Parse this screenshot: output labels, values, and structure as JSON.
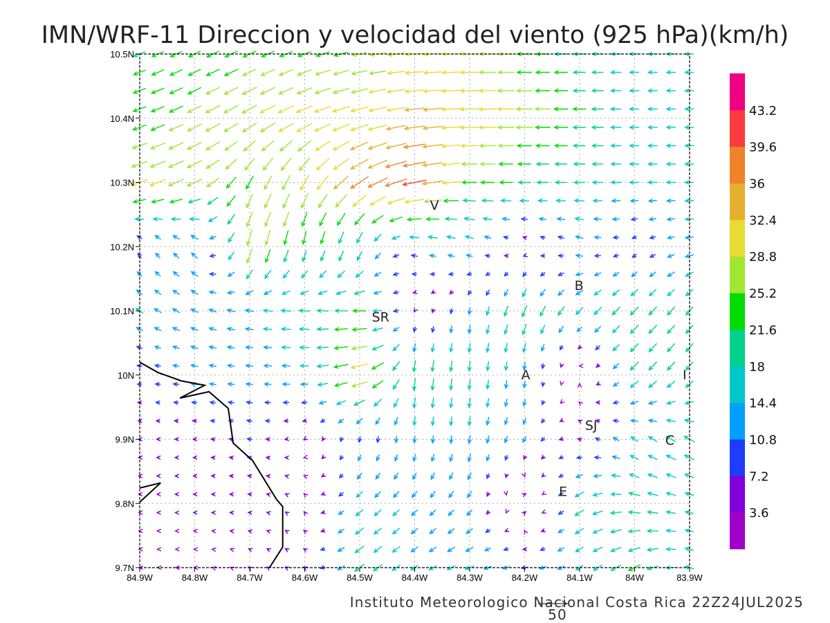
{
  "chart_data": {
    "type": "vector-field",
    "title": "IMN/WRF-11 Direccion y velocidad del viento (925 hPa)(km/h)",
    "footer": "Instituto Meteorologico Nacional Costa Rica 22Z24JUL2025",
    "reference_vector": {
      "value": 50,
      "label": "50"
    },
    "units": "km/h",
    "xlim": [
      -84.9,
      -83.9
    ],
    "ylim": [
      9.7,
      10.5
    ],
    "grid": true,
    "x_ticks": [
      {
        "v": -84.9,
        "label": "84.9W"
      },
      {
        "v": -84.8,
        "label": "84.8W"
      },
      {
        "v": -84.7,
        "label": "84.7W"
      },
      {
        "v": -84.6,
        "label": "84.6W"
      },
      {
        "v": -84.5,
        "label": "84.5W"
      },
      {
        "v": -84.4,
        "label": "84.4W"
      },
      {
        "v": -84.3,
        "label": "84.3W"
      },
      {
        "v": -84.2,
        "label": "84.2W"
      },
      {
        "v": -84.1,
        "label": "84.1W"
      },
      {
        "v": -84.0,
        "label": "84W"
      },
      {
        "v": -83.9,
        "label": "83.9W"
      }
    ],
    "y_ticks": [
      {
        "v": 10.5,
        "label": "10.5N"
      },
      {
        "v": 10.4,
        "label": "10.4N"
      },
      {
        "v": 10.3,
        "label": "10.3N"
      },
      {
        "v": 10.2,
        "label": "10.2N"
      },
      {
        "v": 10.1,
        "label": "10.1N"
      },
      {
        "v": 10.0,
        "label": "10N"
      },
      {
        "v": 9.9,
        "label": "9.9N"
      },
      {
        "v": 9.8,
        "label": "9.8N"
      },
      {
        "v": 9.7,
        "label": "9.7N"
      }
    ],
    "colorbar": {
      "legend_position": "right",
      "levels": [
        3.6,
        7.2,
        10.8,
        14.4,
        18,
        21.6,
        25.2,
        28.8,
        32.4,
        36,
        39.6,
        43.2
      ],
      "labels": [
        "3.6",
        "7.2",
        "10.8",
        "14.4",
        "18",
        "21.6",
        "25.2",
        "28.8",
        "32.4",
        "36",
        "39.6",
        "43.2"
      ],
      "colors": [
        "#a000c8",
        "#8200dc",
        "#1e3cff",
        "#00a0ff",
        "#00c8c8",
        "#00d28c",
        "#00dc00",
        "#a0e632",
        "#e6dc32",
        "#e6af2d",
        "#f08228",
        "#fa3c3c",
        "#f00082"
      ]
    },
    "field": {
      "lons": [
        -84.9,
        -84.8,
        -84.7,
        -84.6,
        -84.5,
        -84.4,
        -84.3,
        -84.2,
        -84.1,
        -84.0,
        -83.9
      ],
      "lats": [
        10.5,
        10.4,
        10.3,
        10.2,
        10.1,
        10.0,
        9.9,
        9.8,
        9.7
      ],
      "u": [
        [
          -20,
          -20,
          -22,
          -22,
          -25,
          -30,
          -30,
          -24,
          -20,
          -16,
          -15
        ],
        [
          -22,
          -24,
          -26,
          -28,
          -30,
          -33,
          -32,
          -28,
          -22,
          -16,
          -15
        ],
        [
          -28,
          -25,
          -12,
          -14,
          -30,
          -40,
          -25,
          -20,
          -18,
          -16,
          -15
        ],
        [
          -5,
          -10,
          -8,
          -4,
          -6,
          -12,
          -12,
          -3,
          -12,
          -6,
          -14
        ],
        [
          -12,
          -12,
          -14,
          -18,
          -22,
          -2,
          -2,
          -8,
          -12,
          -14,
          -12
        ],
        [
          -8,
          -12,
          -12,
          -14,
          -30,
          -3,
          -2,
          -1,
          1,
          -14,
          -12
        ],
        [
          -4,
          -5,
          -8,
          -3,
          -2,
          -1,
          -2,
          -6,
          -6,
          -12,
          -18
        ],
        [
          -3,
          -4,
          -5,
          -2,
          -12,
          -10,
          -8,
          6,
          -16,
          -20,
          -14
        ],
        [
          -2,
          -2,
          -3,
          -4,
          -16,
          -12,
          -14,
          -10,
          -12,
          -20,
          -15
        ]
      ],
      "v": [
        [
          -8,
          -10,
          -10,
          -8,
          -5,
          -2,
          0,
          0,
          0,
          0,
          0
        ],
        [
          -8,
          -12,
          -14,
          -12,
          -8,
          -4,
          -1,
          0,
          0,
          0,
          0
        ],
        [
          -10,
          -12,
          -22,
          -26,
          -20,
          -8,
          0,
          0,
          0,
          0,
          0
        ],
        [
          8,
          10,
          -28,
          -22,
          -18,
          3,
          5,
          2,
          4,
          -4,
          -2
        ],
        [
          8,
          6,
          2,
          1,
          0,
          -3,
          -12,
          -20,
          -12,
          -14,
          -14
        ],
        [
          0,
          2,
          1,
          0,
          -8,
          -22,
          -18,
          -12,
          2,
          -14,
          -14
        ],
        [
          0,
          0,
          2,
          -2,
          -10,
          -12,
          -14,
          -10,
          2,
          8,
          10
        ],
        [
          0,
          0,
          0,
          3,
          -10,
          -10,
          -10,
          4,
          -10,
          4,
          3
        ],
        [
          0,
          0,
          2,
          2,
          -12,
          -8,
          -6,
          -2,
          -8,
          -10,
          4
        ]
      ]
    },
    "coastline": [
      [
        [
          -84.9,
          10.02
        ],
        [
          -84.867,
          10.004
        ],
        [
          -84.825,
          9.991
        ],
        [
          -84.782,
          9.984
        ],
        [
          -84.827,
          9.964
        ],
        [
          -84.774,
          9.974
        ],
        [
          -84.739,
          9.948
        ],
        [
          -84.73,
          9.894
        ],
        [
          -84.695,
          9.867
        ],
        [
          -84.651,
          9.806
        ],
        [
          -84.64,
          9.795
        ],
        [
          -84.64,
          9.732
        ],
        [
          -84.664,
          9.7
        ]
      ],
      [
        [
          -84.9,
          9.824
        ],
        [
          -84.862,
          9.832
        ],
        [
          -84.9,
          9.802
        ]
      ]
    ],
    "cities": [
      {
        "label": "V",
        "lon": -84.364,
        "lat": 10.265
      },
      {
        "label": "SR",
        "lon": -84.462,
        "lat": 10.091
      },
      {
        "label": "B",
        "lon": -84.101,
        "lat": 10.14
      },
      {
        "label": "A",
        "lon": -84.198,
        "lat": 10.001
      },
      {
        "label": "I",
        "lon": -83.909,
        "lat": 10.001
      },
      {
        "label": "SJ",
        "lon": -84.079,
        "lat": 9.922
      },
      {
        "label": "C",
        "lon": -83.936,
        "lat": 9.899
      },
      {
        "label": "E",
        "lon": -84.13,
        "lat": 9.819
      }
    ]
  }
}
